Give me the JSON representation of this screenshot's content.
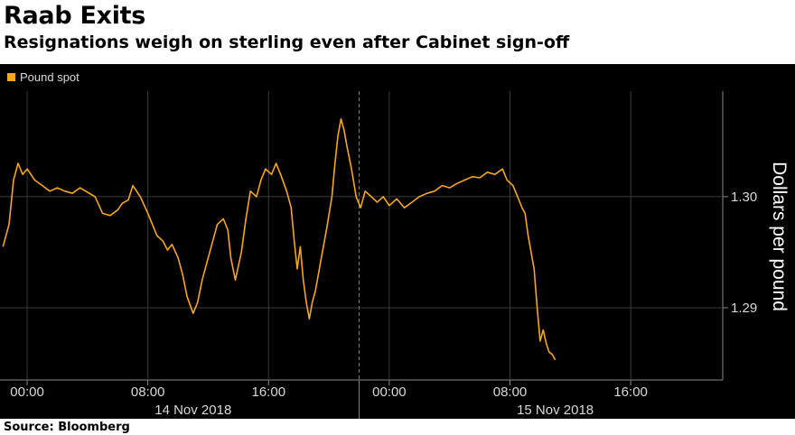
{
  "title": "Raab Exits",
  "subtitle": "Resignations weigh on sterling even after Cabinet sign-off",
  "source": "Source: Bloomberg",
  "colors": {
    "background": "#000000",
    "series": "#f5a623",
    "grid": "#3a3a3a",
    "text": "#d8d8d8"
  },
  "chart_data": {
    "type": "line",
    "ylabel": "Dollars per pound",
    "ylim": [
      1.2835,
      1.3095
    ],
    "yticks": [
      1.29,
      1.3
    ],
    "ytick_labels": [
      "1.29",
      "1.30"
    ],
    "xlim": [
      -1.8,
      46.1
    ],
    "xticks": [
      0,
      8,
      16,
      24,
      32,
      40
    ],
    "xtick_labels": [
      "00:00",
      "08:00",
      "16:00",
      "00:00",
      "08:00",
      "16:00"
    ],
    "date_labels": [
      {
        "at_hour": 11,
        "label": "14 Nov 2018"
      },
      {
        "at_hour": 35,
        "label": "15 Nov 2018"
      }
    ],
    "day_divider_hour": 22,
    "grid": true,
    "legend": {
      "position": "top-left",
      "entries": [
        "Pound spot"
      ]
    },
    "series": [
      {
        "name": "Pound spot",
        "x": [
          -1.6,
          -1.2,
          -0.9,
          -0.6,
          -0.3,
          0.0,
          0.5,
          1.0,
          1.5,
          2.0,
          2.5,
          3.0,
          3.5,
          4.0,
          4.5,
          5.0,
          5.5,
          6.0,
          6.3,
          6.7,
          7.0,
          7.5,
          8.0,
          8.3,
          8.6,
          9.0,
          9.3,
          9.6,
          10.0,
          10.3,
          10.6,
          11.0,
          11.3,
          11.6,
          12.0,
          12.3,
          12.6,
          13.0,
          13.3,
          13.5,
          13.8,
          14.2,
          14.5,
          14.8,
          15.2,
          15.5,
          15.8,
          16.2,
          16.5,
          16.8,
          17.2,
          17.5,
          17.7,
          17.9,
          18.1,
          18.3,
          18.5,
          18.7,
          18.9,
          19.1,
          19.3,
          19.5,
          19.7,
          19.9,
          20.2,
          20.4,
          20.6,
          20.8,
          21.0,
          21.2,
          21.5,
          21.8,
          22.1,
          22.4,
          22.8,
          23.2,
          23.6,
          24.0,
          24.5,
          25.0,
          25.5,
          26.0,
          26.5,
          27.0,
          27.5,
          28.0,
          28.5,
          29.0,
          29.5,
          30.0,
          30.5,
          31.0,
          31.5,
          31.8,
          32.2,
          32.5,
          32.8,
          33.0,
          33.2,
          33.4,
          33.6,
          33.8,
          34.0,
          34.2,
          34.4,
          34.6,
          34.8,
          35.0
        ],
        "values": [
          1.2955,
          1.2975,
          1.3015,
          1.303,
          1.302,
          1.3025,
          1.3015,
          1.301,
          1.3005,
          1.3008,
          1.3005,
          1.3003,
          1.3008,
          1.3004,
          1.3,
          1.2985,
          1.2983,
          1.2988,
          1.2994,
          1.2997,
          1.301,
          1.3,
          1.2985,
          1.2975,
          1.2965,
          1.296,
          1.2952,
          1.2957,
          1.2945,
          1.293,
          1.291,
          1.2895,
          1.2905,
          1.2925,
          1.2945,
          1.296,
          1.2975,
          1.298,
          1.297,
          1.2945,
          1.2925,
          1.295,
          1.298,
          1.3005,
          1.3,
          1.3015,
          1.3025,
          1.302,
          1.303,
          1.302,
          1.3005,
          1.299,
          1.296,
          1.2935,
          1.2955,
          1.2925,
          1.2905,
          1.289,
          1.2905,
          1.2915,
          1.293,
          1.2945,
          1.296,
          1.2975,
          1.3,
          1.303,
          1.3055,
          1.307,
          1.306,
          1.3045,
          1.3025,
          1.3,
          1.299,
          1.3005,
          1.3,
          1.2995,
          1.3,
          1.2992,
          1.2998,
          1.299,
          1.2995,
          1.3,
          1.3003,
          1.3005,
          1.301,
          1.3008,
          1.3012,
          1.3015,
          1.3018,
          1.3017,
          1.3022,
          1.302,
          1.3025,
          1.3015,
          1.301,
          1.3,
          1.299,
          1.2985,
          1.2965,
          1.295,
          1.2935,
          1.29,
          1.287,
          1.288,
          1.2868,
          1.286,
          1.2858,
          1.2853
        ]
      }
    ]
  }
}
